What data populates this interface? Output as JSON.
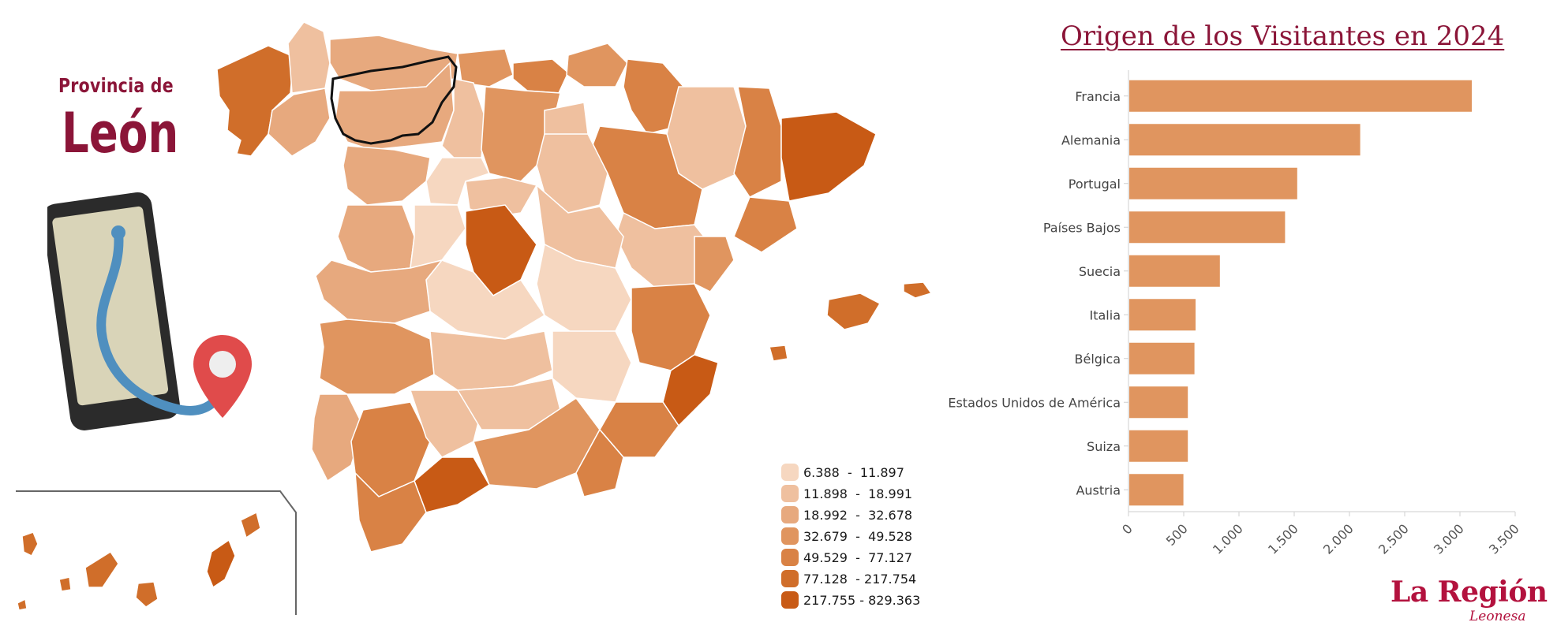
{
  "heading": {
    "subtitle": "Provincia de",
    "province": "León"
  },
  "map": {
    "legend": [
      {
        "label": "6.388  -  11.897",
        "color": "#f6d7c0"
      },
      {
        "label": "11.898  -  18.991",
        "color": "#efc09f"
      },
      {
        "label": "18.992  -  32.678",
        "color": "#e7a97e"
      },
      {
        "label": "32.679  -  49.528",
        "color": "#e0955f"
      },
      {
        "label": "49.529  -  77.127",
        "color": "#d98245"
      },
      {
        "label": "77.128  - 217.754",
        "color": "#d06e2a"
      },
      {
        "label": "217.755 - 829.363",
        "color": "#c85a15"
      }
    ],
    "highlight_outline": "#111111"
  },
  "chart_data": {
    "type": "bar",
    "orientation": "horizontal",
    "title": "Origen de los Visitantes en 2024",
    "categories": [
      "Francia",
      "Alemania",
      "Portugal",
      "Países Bajos",
      "Suecia",
      "Italia",
      "Bélgica",
      "Estados Unidos de América",
      "Suiza",
      "Austria"
    ],
    "values": [
      3100,
      2090,
      1520,
      1410,
      820,
      600,
      590,
      530,
      530,
      490
    ],
    "xlim": [
      0,
      3500
    ],
    "xticks": [
      0,
      500,
      1000,
      1500,
      2000,
      2500,
      3000,
      3500
    ],
    "xtick_labels": [
      "0",
      "500",
      "1.000",
      "1.500",
      "2.000",
      "2.500",
      "3.000",
      "3.500"
    ],
    "bar_color": "#e0955f",
    "grid": false
  },
  "brand": {
    "name": "La Región",
    "subtitle": "Leonesa",
    "color": "#b3123e"
  }
}
